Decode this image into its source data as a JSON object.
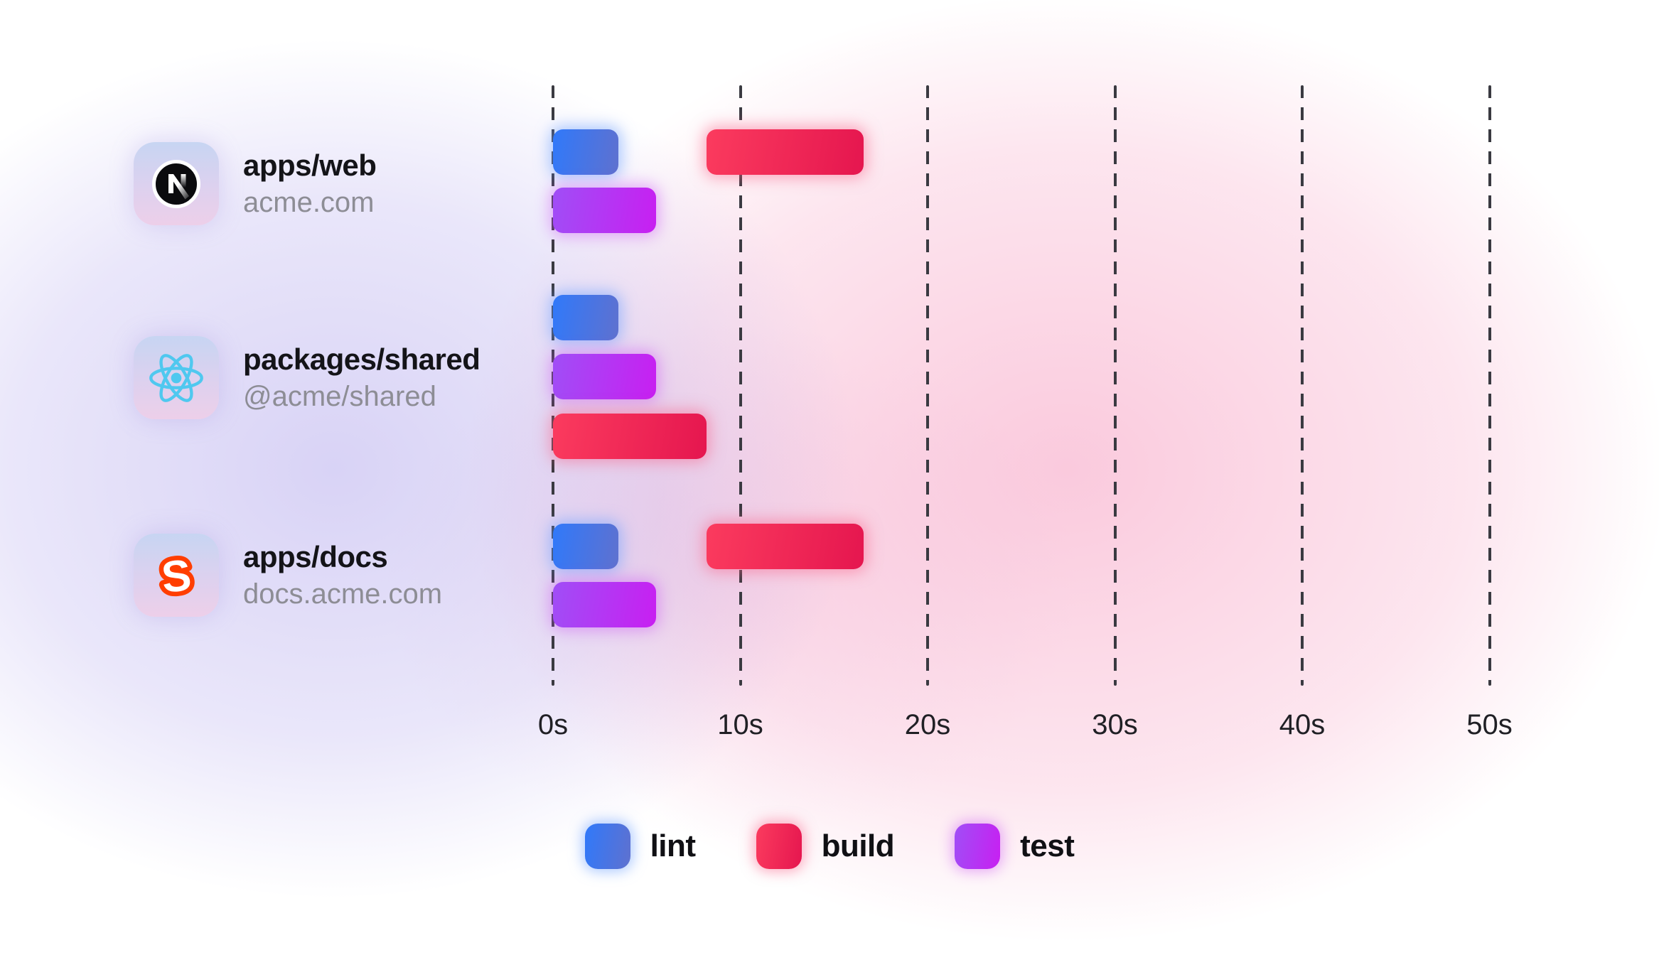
{
  "packages": [
    {
      "name": "apps/web",
      "subtitle": "acme.com",
      "icon": "nextjs-logo"
    },
    {
      "name": "packages/shared",
      "subtitle": "@acme/shared",
      "icon": "react-logo"
    },
    {
      "name": "apps/docs",
      "subtitle": "docs.acme.com",
      "icon": "svelte-logo"
    }
  ],
  "axis": {
    "tick_labels": [
      "0s",
      "10s",
      "20s",
      "30s",
      "40s",
      "50s"
    ]
  },
  "legend": {
    "items": [
      {
        "key": "lint",
        "label": "lint"
      },
      {
        "key": "build",
        "label": "build"
      },
      {
        "key": "test",
        "label": "test"
      }
    ]
  },
  "colors": {
    "lint": {
      "from": "#3079fa",
      "to": "#5f71cf",
      "glow": "rgba(110,160,255,0.55)"
    },
    "build": {
      "from": "#fb3b5e",
      "to": "#e5164f",
      "glow": "rgba(250,95,135,0.50)"
    },
    "test": {
      "from": "#a04ef6",
      "to": "#c81ff1",
      "glow": "rgba(205,85,245,0.45)"
    }
  },
  "chart_data": {
    "type": "bar",
    "variant": "gantt-timeline",
    "x_unit": "seconds",
    "x_ticks": [
      0,
      10,
      20,
      30,
      40,
      50
    ],
    "x_range": [
      0,
      50
    ],
    "grid": true,
    "legend_position": "bottom-center",
    "rows": [
      {
        "package": "apps/web",
        "tasks": [
          {
            "task": "lint",
            "start": 0,
            "end": 3.5,
            "line": 0
          },
          {
            "task": "build",
            "start": 8.2,
            "end": 16.6,
            "line": 0
          },
          {
            "task": "test",
            "start": 0,
            "end": 5.5,
            "line": 1
          }
        ]
      },
      {
        "package": "packages/shared",
        "tasks": [
          {
            "task": "lint",
            "start": 0,
            "end": 3.5,
            "line": 0
          },
          {
            "task": "test",
            "start": 0,
            "end": 5.5,
            "line": 1
          },
          {
            "task": "build",
            "start": 0,
            "end": 8.2,
            "line": 2
          }
        ]
      },
      {
        "package": "apps/docs",
        "tasks": [
          {
            "task": "lint",
            "start": 0,
            "end": 3.5,
            "line": 0
          },
          {
            "task": "build",
            "start": 8.2,
            "end": 16.6,
            "line": 0
          },
          {
            "task": "test",
            "start": 0,
            "end": 5.5,
            "line": 1
          }
        ]
      }
    ]
  }
}
